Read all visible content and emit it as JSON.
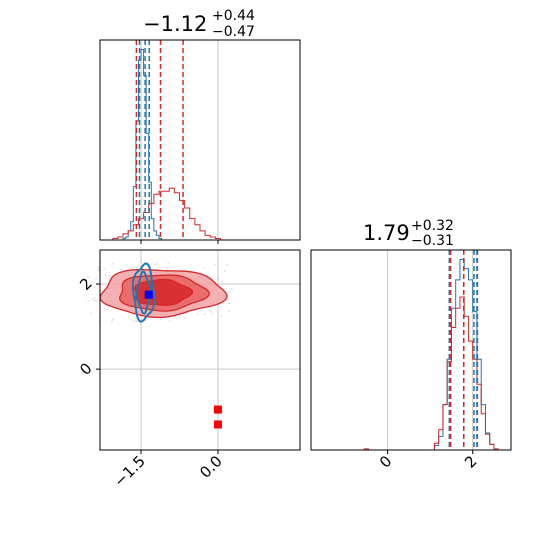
{
  "chart_data": [
    {
      "type": "histogram",
      "panel": "top-left",
      "title": {
        "value": "−1.12",
        "upper": "+0.44",
        "lower": "−0.47"
      },
      "xlim": [
        -2.3,
        1.6
      ],
      "xticks": [
        -1.5,
        0.0
      ],
      "grid": true,
      "vlines": {
        "red": [
          -1.59,
          -1.12,
          -0.68
        ],
        "blue": [
          -1.53,
          -1.42,
          -1.34
        ]
      },
      "series": [
        {
          "color": "#1f77b4",
          "bin_edges": [
            -1.9,
            -1.85,
            -1.8,
            -1.75,
            -1.7,
            -1.65,
            -1.6,
            -1.55,
            -1.5,
            -1.45,
            -1.4,
            -1.35,
            -1.3,
            -1.25,
            -1.2,
            -1.15,
            -1.1
          ],
          "counts": [
            0,
            1,
            2,
            6,
            12,
            35,
            78,
            118,
            125,
            108,
            70,
            38,
            14,
            6,
            3,
            1
          ]
        },
        {
          "color": "#d62728",
          "bin_edges": [
            -2.15,
            -2.05,
            -1.95,
            -1.85,
            -1.75,
            -1.65,
            -1.55,
            -1.45,
            -1.35,
            -1.25,
            -1.15,
            -1.05,
            -0.95,
            -0.85,
            -0.75,
            -0.65,
            -0.55,
            -0.45,
            -0.35,
            -0.25,
            -0.15,
            -0.05,
            0.05,
            0.15
          ],
          "counts": [
            0,
            1,
            2,
            4,
            6,
            10,
            14,
            18,
            24,
            30,
            32,
            32,
            34,
            31,
            26,
            21,
            14,
            10,
            6,
            3,
            2,
            1,
            0
          ]
        }
      ]
    },
    {
      "type": "contour",
      "panel": "bottom-left",
      "xlim": [
        -2.3,
        1.6
      ],
      "ylim": [
        -1.9,
        2.8
      ],
      "xticks": [
        -1.5,
        0.0
      ],
      "yticks": [
        0,
        2
      ],
      "grid": true,
      "red_contours": {
        "center": [
          -1.1,
          1.8
        ],
        "radii": [
          [
            1.2,
            0.55
          ],
          [
            0.85,
            0.42
          ],
          [
            0.55,
            0.3
          ]
        ]
      },
      "blue_contours": {
        "center": [
          -1.45,
          1.8
        ],
        "radii": [
          [
            0.2,
            0.65
          ],
          [
            0.12,
            0.45
          ]
        ]
      },
      "points": [
        {
          "x": -1.35,
          "y": 1.75,
          "color": "#0000ff"
        },
        {
          "x": 0.0,
          "y": -0.95,
          "color": "#ff0000"
        },
        {
          "x": 0.0,
          "y": -1.3,
          "color": "#ff0000"
        }
      ]
    },
    {
      "type": "histogram",
      "panel": "bottom-right",
      "title": {
        "value": "1.79",
        "upper": "+0.32",
        "lower": "−0.31"
      },
      "xlim": [
        -1.8,
        2.9
      ],
      "xticks": [
        0,
        2
      ],
      "grid": true,
      "vlines": {
        "red": [
          1.48,
          1.79,
          2.11
        ],
        "blue": [
          1.45,
          2.03,
          2.1
        ]
      },
      "series": [
        {
          "color": "#1f77b4",
          "bin_edges": [
            1.0,
            1.1,
            1.2,
            1.3,
            1.4,
            1.5,
            1.6,
            1.7,
            1.8,
            1.9,
            2.0,
            2.1,
            2.2,
            2.3,
            2.4,
            2.5,
            2.6
          ],
          "counts": [
            0,
            4,
            12,
            40,
            80,
            125,
            150,
            168,
            160,
            150,
            122,
            80,
            40,
            15,
            5,
            0
          ]
        },
        {
          "color": "#d62728",
          "bin_edges": [
            -0.55,
            -0.45,
            1.1,
            1.2,
            1.3,
            1.4,
            1.5,
            1.6,
            1.7,
            1.8,
            1.9,
            2.0,
            2.1,
            2.2,
            2.3,
            2.4,
            2.5,
            2.6,
            2.7
          ],
          "counts": [
            1,
            0,
            6,
            18,
            40,
            78,
            108,
            125,
            135,
            118,
            96,
            80,
            58,
            32,
            14,
            5,
            1,
            0
          ]
        }
      ]
    }
  ]
}
